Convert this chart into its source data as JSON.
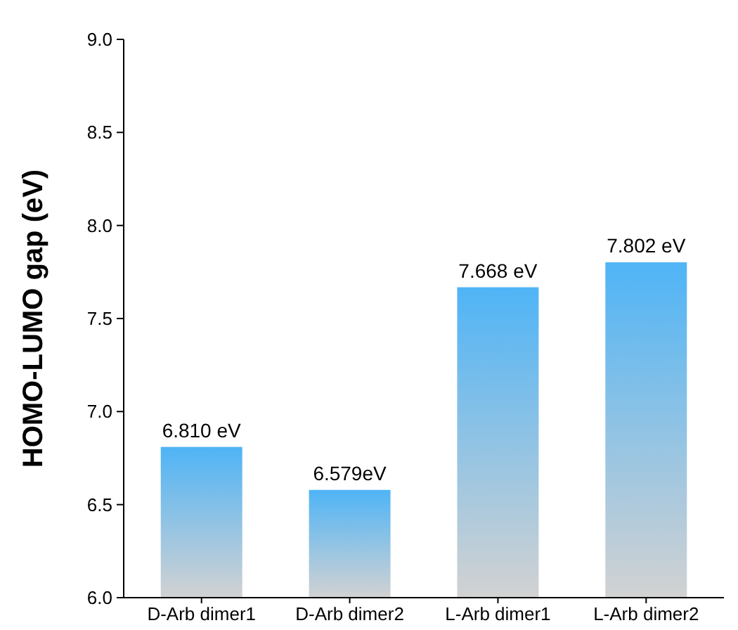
{
  "chart_data": {
    "type": "bar",
    "ylabel": "HOMO-LUMO gap (eV)",
    "categories": [
      "D-Arb dimer1",
      "D-Arb dimer2",
      "L-Arb dimer1",
      "L-Arb dimer2"
    ],
    "values": [
      6.81,
      6.579,
      7.668,
      7.802
    ],
    "value_labels": [
      "6.810 eV",
      "6.579eV",
      "7.668 eV",
      "7.802 eV"
    ],
    "color": "#4fb4f6",
    "ylim": [
      6,
      9
    ],
    "yticks": [
      {
        "value": 6,
        "label": "6.0"
      },
      {
        "value": 6.5,
        "label": "6.5"
      },
      {
        "value": 7,
        "label": "7.0"
      },
      {
        "value": 7.5,
        "label": "7.5"
      },
      {
        "value": 8,
        "label": "8.0"
      },
      {
        "value": 8.5,
        "label": "8.5"
      },
      {
        "value": 9,
        "label": "9.0"
      }
    ],
    "grid": false
  }
}
